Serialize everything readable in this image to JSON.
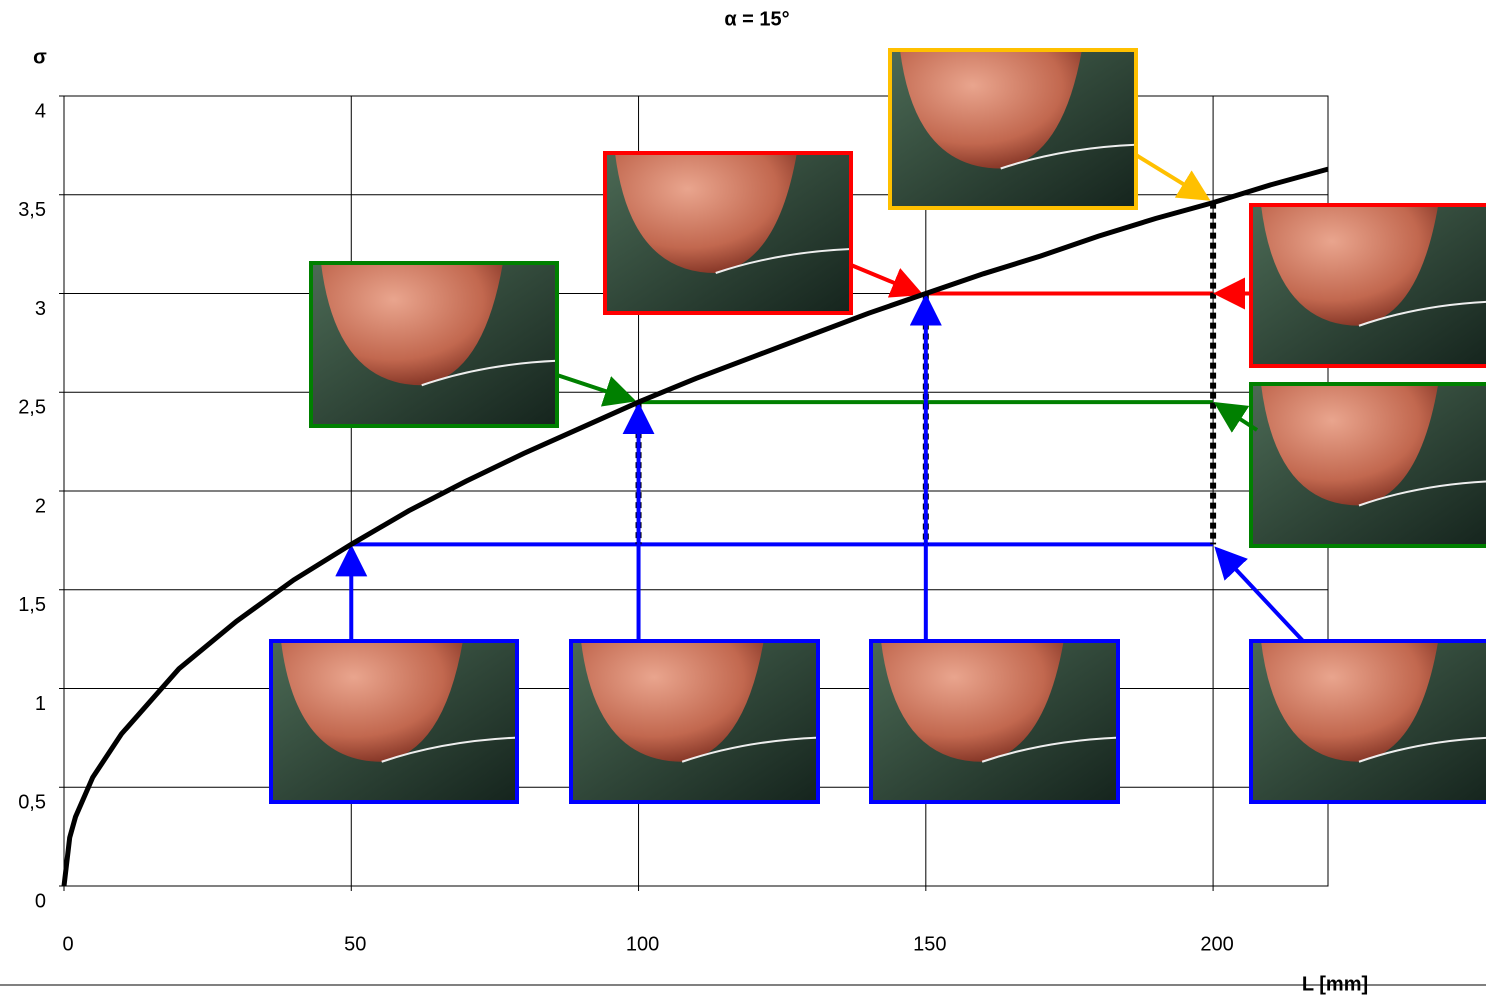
{
  "chart_data": {
    "type": "line",
    "title": "α = 15°",
    "y_label": "σ",
    "x_label": "L [mm]",
    "x": [
      0,
      1,
      2,
      5,
      10,
      20,
      30,
      40,
      50,
      60,
      70,
      80,
      90,
      100,
      110,
      120,
      130,
      140,
      150,
      160,
      170,
      180,
      190,
      200,
      210,
      220
    ],
    "series": [
      {
        "color": "#000000",
        "values": [
          0,
          0.245,
          0.35,
          0.55,
          0.77,
          1.1,
          1.34,
          1.55,
          1.73,
          1.9,
          2.05,
          2.19,
          2.32,
          2.45,
          2.57,
          2.68,
          2.79,
          2.9,
          3.0,
          3.1,
          3.19,
          3.29,
          3.38,
          3.46,
          3.55,
          3.63
        ]
      }
    ],
    "xlim": [
      0,
      220
    ],
    "xticks": [
      0,
      50,
      100,
      150,
      200
    ],
    "ylim": [
      0,
      4
    ],
    "yticks": [
      0,
      {
        "value": 0.5,
        "label": "0,5"
      },
      1,
      {
        "value": 1.5,
        "label": "1,5"
      },
      2,
      {
        "value": 2.5,
        "label": "2,5"
      },
      3,
      {
        "value": 3.5,
        "label": "3,5"
      },
      4
    ],
    "grid": true
  }
}
